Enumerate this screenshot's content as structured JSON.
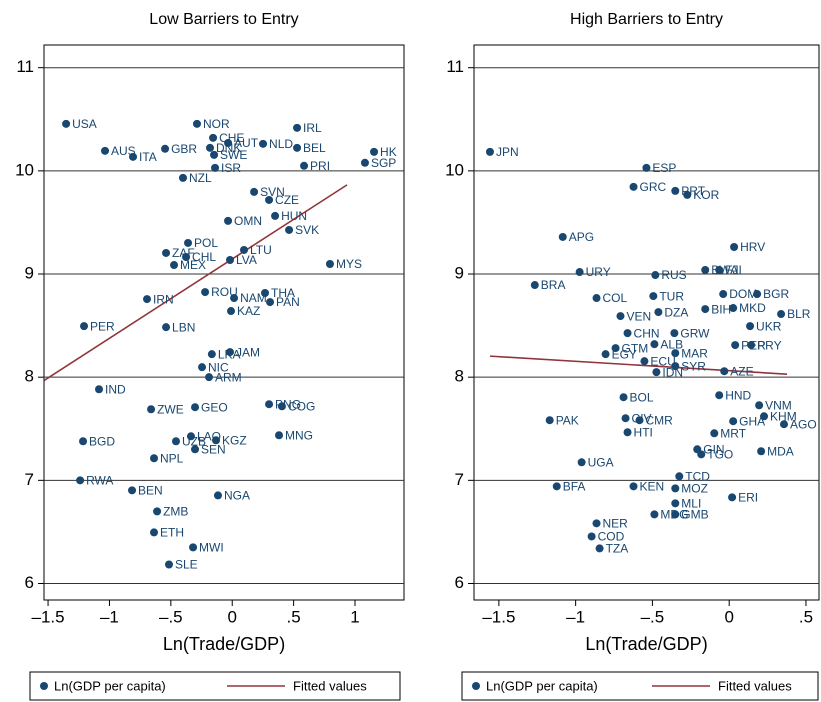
{
  "chart_data": [
    {
      "type": "scatter",
      "title": "Low Barriers to Entry",
      "xlabel": "Ln(Trade/GDP)",
      "xlim": [
        -1.533,
        1.399
      ],
      "ylim": [
        5.84,
        11.22
      ],
      "xticks": [
        {
          "value": -1.5,
          "label": "–1.5"
        },
        {
          "value": -1,
          "label": "–1"
        },
        {
          "value": -0.5,
          "label": "–.5"
        },
        0,
        {
          "value": 0.5,
          "label": ".5"
        },
        1
      ],
      "yticks": [
        6,
        7,
        8,
        9,
        10,
        11
      ],
      "grid": true,
      "series": [
        {
          "name": "Ln(GDP per capita)",
          "color": "#1a476f",
          "labels": [
            "USA",
            "AUS",
            "ITA",
            "GBR",
            "NOR",
            "CHE",
            "DNK",
            "AUT",
            "SWE",
            "NLD",
            "IRL",
            "BEL",
            "HK",
            "SGP",
            "PRI",
            "ISR",
            "NZL",
            "SVN",
            "CZE",
            "HUN",
            "OMN",
            "SVK",
            "POL",
            "LTU",
            "ZAF",
            "CHL",
            "LVA",
            "MEX",
            "MYS",
            "ROU",
            "THA",
            "NAM",
            "PAN",
            "IRN",
            "KAZ",
            "PER",
            "LBN",
            "JAM",
            "LKA",
            "NIC",
            "ARM",
            "IND",
            "PNG",
            "COG",
            "ZWE",
            "GEO",
            "MNG",
            "LAO",
            "KGZ",
            "BGD",
            "UZB",
            "SEN",
            "NPL",
            "RWA",
            "BEN",
            "NGA",
            "ZMB",
            "ETH",
            "MWI",
            "SLE"
          ],
          "x": [
            -1.353,
            -1.036,
            -0.808,
            -0.547,
            -0.287,
            -0.156,
            -0.181,
            -0.034,
            -0.148,
            0.251,
            0.528,
            0.528,
            1.155,
            1.081,
            0.585,
            -0.14,
            -0.401,
            0.178,
            0.3,
            0.349,
            -0.034,
            0.463,
            -0.36,
            0.096,
            -0.539,
            -0.376,
            -0.018,
            -0.474,
            0.796,
            -0.221,
            0.267,
            0.015,
            0.308,
            -0.694,
            -0.01,
            -1.207,
            -0.539,
            -0.018,
            -0.166,
            -0.246,
            -0.189,
            -1.085,
            0.3,
            0.405,
            -0.661,
            -0.303,
            0.381,
            -0.336,
            -0.132,
            -1.215,
            -0.458,
            -0.303,
            -0.637,
            -1.239,
            -0.816,
            -0.116,
            -0.612,
            -0.637,
            -0.319,
            -0.515
          ],
          "values": [
            10.456,
            10.194,
            10.136,
            10.214,
            10.456,
            10.32,
            10.223,
            10.27,
            10.155,
            10.262,
            10.417,
            10.223,
            10.184,
            10.078,
            10.049,
            10.029,
            9.932,
            9.796,
            9.718,
            9.563,
            9.515,
            9.427,
            9.301,
            9.233,
            9.204,
            9.165,
            9.136,
            9.087,
            9.097,
            8.825,
            8.816,
            8.767,
            8.728,
            8.757,
            8.641,
            8.495,
            8.485,
            8.243,
            8.223,
            8.097,
            8.0,
            7.883,
            7.738,
            7.718,
            7.689,
            7.709,
            7.437,
            7.427,
            7.388,
            7.379,
            7.379,
            7.301,
            7.214,
            7.0,
            6.903,
            6.854,
            6.699,
            6.495,
            6.35,
            6.184
          ]
        },
        {
          "name": "Fitted values",
          "color": "#90353b",
          "x": [
            -1.53,
            0.935
          ],
          "values": [
            7.97,
            9.864
          ]
        }
      ]
    },
    {
      "type": "scatter",
      "title": "High Barriers to Entry",
      "xlabel": "Ln(Trade/GDP)",
      "xlim": [
        -1.662,
        0.585
      ],
      "ylim": [
        5.84,
        11.22
      ],
      "xticks": [
        {
          "value": -1.5,
          "label": "–1.5"
        },
        {
          "value": -1,
          "label": "–1"
        },
        {
          "value": -0.5,
          "label": "–.5"
        },
        0,
        {
          "value": 0.5,
          "label": ".5"
        }
      ],
      "yticks": [
        6,
        7,
        8,
        9,
        10,
        11
      ],
      "grid": true,
      "series": [
        {
          "name": "Ln(GDP per capita)",
          "color": "#1a476f",
          "labels": [
            "JPN",
            "ESP",
            "GRC",
            "PRT",
            "KOR",
            "APG",
            "HRV",
            "URY",
            "RUS",
            "BWA",
            "FJI",
            "BRA",
            "DOM",
            "BGR",
            "COL",
            "TUR",
            "BIH",
            "MKD",
            "DZA",
            "BLR",
            "VEN",
            "UKR",
            "CHN",
            "GRW",
            "ALB",
            "PER",
            "PRY",
            "GTM",
            "MAR",
            "EGY",
            "ECU",
            "SYR",
            "IDN",
            "AZE",
            "BOL",
            "HND",
            "VNM",
            "PAK",
            "CIV",
            "CMR",
            "KHM",
            "GHA",
            "AGO",
            "HTI",
            "MRT",
            "MDA",
            "GIN",
            "TGO",
            "UGA",
            "TCD",
            "KEN",
            "BFA",
            "MOZ",
            "ERI",
            "MLI",
            "MDG",
            "GMB",
            "NER",
            "COD",
            "TZA"
          ],
          "x": [
            -1.558,
            -0.539,
            -0.623,
            -0.351,
            -0.273,
            -1.084,
            0.032,
            -0.974,
            -0.481,
            -0.156,
            -0.065,
            -1.266,
            -0.039,
            0.182,
            -0.864,
            -0.494,
            -0.156,
            0.026,
            -0.461,
            0.338,
            -0.708,
            0.136,
            -0.662,
            -0.357,
            -0.487,
            0.039,
            0.143,
            -0.74,
            -0.351,
            -0.805,
            -0.552,
            -0.351,
            -0.474,
            -0.032,
            -0.688,
            -0.065,
            0.195,
            -1.169,
            -0.675,
            -0.584,
            0.227,
            0.026,
            0.357,
            -0.662,
            -0.097,
            0.208,
            -0.208,
            -0.182,
            -0.961,
            -0.325,
            -0.623,
            -1.123,
            -0.351,
            0.019,
            -0.351,
            -0.487,
            -0.351,
            -0.864,
            -0.896,
            -0.844
          ],
          "values": [
            10.184,
            10.029,
            9.845,
            9.806,
            9.767,
            9.359,
            9.262,
            9.019,
            8.99,
            9.039,
            9.039,
            8.893,
            8.806,
            8.806,
            8.767,
            8.786,
            8.66,
            8.67,
            8.631,
            8.612,
            8.592,
            8.495,
            8.427,
            8.427,
            8.32,
            8.311,
            8.311,
            8.282,
            8.233,
            8.223,
            8.155,
            8.107,
            8.049,
            8.058,
            7.806,
            7.825,
            7.728,
            7.583,
            7.602,
            7.583,
            7.621,
            7.573,
            7.544,
            7.466,
            7.456,
            7.282,
            7.301,
            7.252,
            7.175,
            7.039,
            6.942,
            6.942,
            6.922,
            6.835,
            6.777,
            6.67,
            6.67,
            6.583,
            6.456,
            6.34
          ]
        },
        {
          "name": "Fitted values",
          "color": "#90353b",
          "x": [
            -1.558,
            0.377
          ],
          "values": [
            8.204,
            8.029
          ]
        }
      ]
    }
  ]
}
